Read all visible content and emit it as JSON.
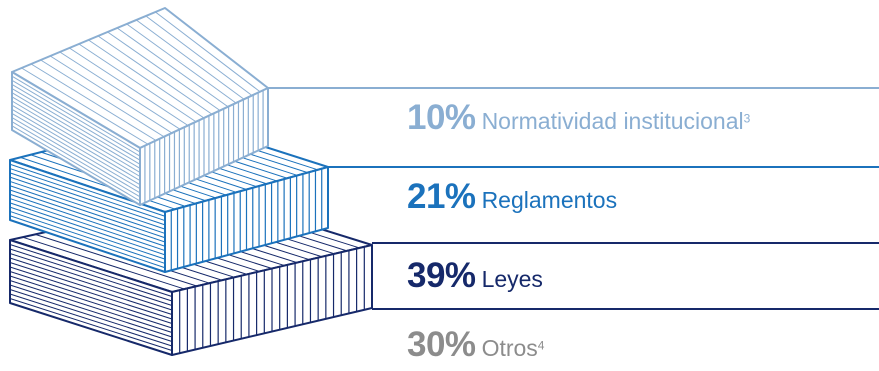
{
  "chart_data": {
    "type": "stacked-books",
    "series": [
      {
        "value": "10%",
        "label": "Normatividad institucional",
        "note": "3",
        "color": "#8aaed2"
      },
      {
        "value": "21%",
        "label": "Reglamentos",
        "note": "",
        "color": "#1b72bc"
      },
      {
        "value": "39%",
        "label": "Leyes",
        "note": "",
        "color": "#16296a"
      },
      {
        "value": "30%",
        "label": "Otros",
        "note": "4",
        "color": "#8c8c8c"
      }
    ]
  }
}
